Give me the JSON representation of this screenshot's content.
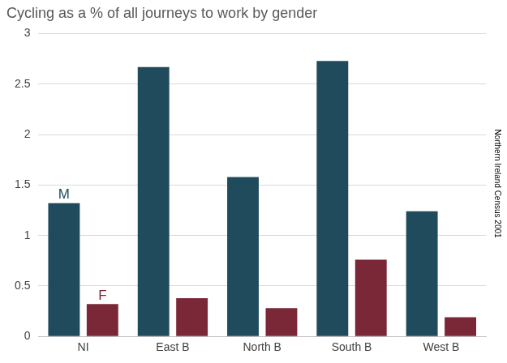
{
  "chart_data": {
    "type": "bar",
    "title": "Cycling as a % of all journeys to work by gender",
    "source": "Northern Ireland Census 2001",
    "categories": [
      "NI",
      "East B",
      "North B",
      "South B",
      "West B"
    ],
    "series": [
      {
        "name": "M",
        "color": "#1f4b5c",
        "values": [
          1.32,
          2.67,
          1.58,
          2.73,
          1.24
        ]
      },
      {
        "name": "F",
        "color": "#7a2838",
        "values": [
          0.32,
          0.38,
          0.28,
          0.76,
          0.19
        ]
      }
    ],
    "ylim": [
      0,
      3
    ],
    "yticks": [
      0,
      0.5,
      1,
      1.5,
      2,
      2.5,
      3
    ],
    "grid": true
  }
}
